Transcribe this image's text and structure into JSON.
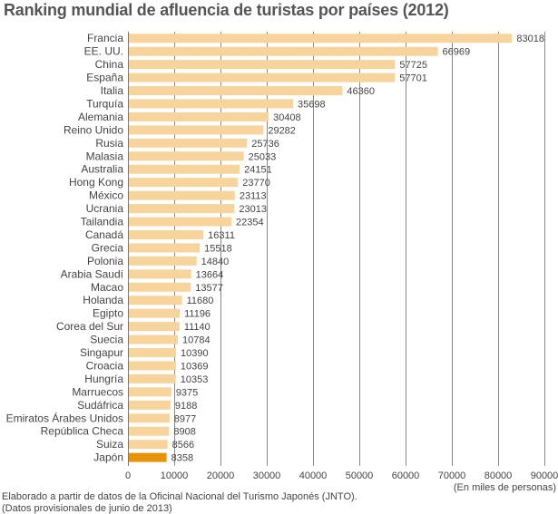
{
  "chart_data": {
    "type": "bar",
    "orientation": "horizontal",
    "title": "Ranking mundial de afluencia de turistas por países (2012)",
    "xlabel": "(En miles de personas)",
    "ylabel": "",
    "xlim": [
      0,
      90000
    ],
    "xticks": [
      0,
      10000,
      20000,
      30000,
      40000,
      50000,
      60000,
      70000,
      80000,
      90000
    ],
    "grid": true,
    "bar_color": "#f7d49b",
    "highlight_color": "#e8940a",
    "highlight_category": "Japón",
    "categories": [
      "Francia",
      "EE. UU.",
      "China",
      "España",
      "Italia",
      "Turquía",
      "Alemania",
      "Reino Unido",
      "Rusia",
      "Malasia",
      "Australia",
      "Hong Kong",
      "México",
      "Ucrania",
      "Tailandia",
      "Canadá",
      "Grecia",
      "Polonia",
      "Arabia Saudí",
      "Macao",
      "Holanda",
      "Egipto",
      "Corea del Sur",
      "Suecia",
      "Singapur",
      "Croacia",
      "Hungría",
      "Marruecos",
      "Sudáfrica",
      "Emiratos Árabes Unidos",
      "República Checa",
      "Suiza",
      "Japón"
    ],
    "values": [
      83018,
      66969,
      57725,
      57701,
      46360,
      35698,
      30408,
      29282,
      25736,
      25033,
      24151,
      23770,
      23113,
      23013,
      22354,
      16311,
      15518,
      14840,
      13664,
      13577,
      11680,
      11196,
      11140,
      10784,
      10390,
      10369,
      10353,
      9375,
      9188,
      8977,
      8908,
      8566,
      8358
    ]
  },
  "notes": {
    "source": "Elaborado a partir de datos de la Oficinal Nacional del Turismo Japonés (JNTO).",
    "provisional": "(Datos provisionales de junio de 2013)"
  }
}
